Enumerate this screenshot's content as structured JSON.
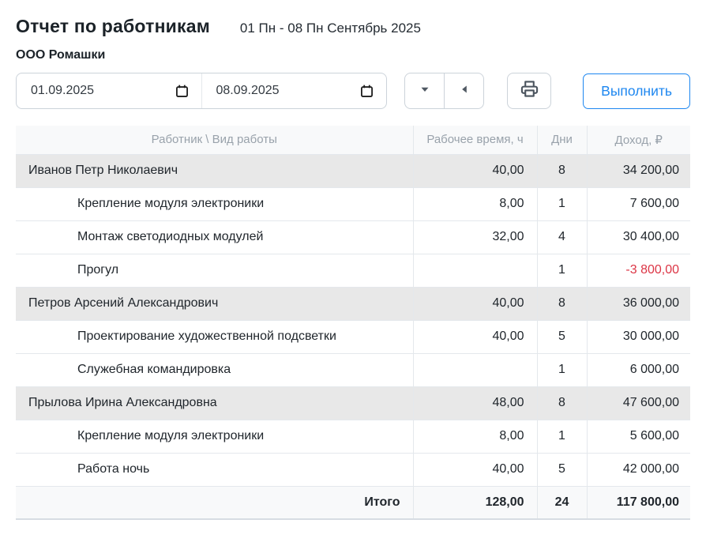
{
  "header": {
    "title": "Отчет по работникам",
    "period": "01 Пн - 08 Пн Сентябрь 2025",
    "company": "ООО Ромашки"
  },
  "toolbar": {
    "date_from": "01.09.2025",
    "date_to": "08.09.2025",
    "dropdown_icon": "caret-down",
    "back_icon": "caret-left",
    "print_icon": "printer",
    "execute_label": "Выполнить"
  },
  "table": {
    "columns": [
      "Работник \\ Вид работы",
      "Рабочее время, ч",
      "Дни",
      "Доход, ₽"
    ],
    "rows": [
      {
        "type": "group",
        "name": "Иванов Петр Николаевич",
        "hours": "40,00",
        "days": "8",
        "income": "34 200,00",
        "negative": false
      },
      {
        "type": "detail",
        "name": "Крепление модуля электроники",
        "hours": "8,00",
        "days": "1",
        "income": "7 600,00",
        "negative": false
      },
      {
        "type": "detail",
        "name": "Монтаж светодиодных модулей",
        "hours": "32,00",
        "days": "4",
        "income": "30 400,00",
        "negative": false
      },
      {
        "type": "detail",
        "name": "Прогул",
        "hours": "",
        "days": "1",
        "income": "-3 800,00",
        "negative": true
      },
      {
        "type": "group",
        "name": "Петров Арсений Александрович",
        "hours": "40,00",
        "days": "8",
        "income": "36 000,00",
        "negative": false
      },
      {
        "type": "detail",
        "name": "Проектирование художественной подсветки",
        "hours": "40,00",
        "days": "5",
        "income": "30 000,00",
        "negative": false
      },
      {
        "type": "detail",
        "name": "Служебная командировка",
        "hours": "",
        "days": "1",
        "income": "6 000,00",
        "negative": false
      },
      {
        "type": "group",
        "name": "Прылова Ирина Александровна",
        "hours": "48,00",
        "days": "8",
        "income": "47 600,00",
        "negative": false
      },
      {
        "type": "detail",
        "name": "Крепление модуля электроники",
        "hours": "8,00",
        "days": "1",
        "income": "5 600,00",
        "negative": false
      },
      {
        "type": "detail",
        "name": "Работа ночь",
        "hours": "40,00",
        "days": "5",
        "income": "42 000,00",
        "negative": false
      }
    ],
    "footer": {
      "label": "Итого",
      "hours": "128,00",
      "days": "24",
      "income": "117 800,00"
    }
  },
  "colors": {
    "accent": "#1e87f0",
    "neg": "#dc3545",
    "group-bg": "#e8e8e8"
  }
}
